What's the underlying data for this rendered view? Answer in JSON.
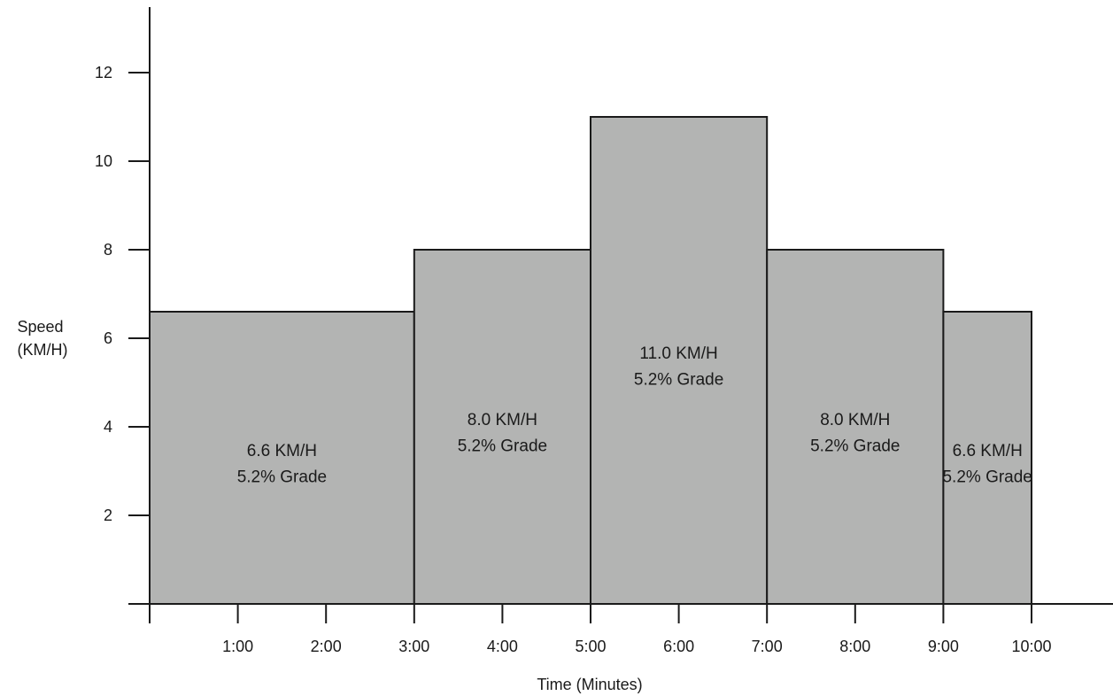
{
  "chart_data": {
    "type": "bar",
    "title": "",
    "xlabel": "Time (Minutes)",
    "ylabel_lines": [
      "Speed",
      "(KM/H)"
    ],
    "xlim": [
      0,
      11
    ],
    "ylim": [
      0,
      13.5
    ],
    "y_ticks": [
      2,
      4,
      6,
      8,
      10,
      12
    ],
    "x_ticks": [
      {
        "value": 0,
        "label": ""
      },
      {
        "value": 1,
        "label": "1:00"
      },
      {
        "value": 2,
        "label": "2:00"
      },
      {
        "value": 3,
        "label": "3:00"
      },
      {
        "value": 4,
        "label": "4:00"
      },
      {
        "value": 5,
        "label": "5:00"
      },
      {
        "value": 6,
        "label": "6:00"
      },
      {
        "value": 7,
        "label": "7:00"
      },
      {
        "value": 8,
        "label": "8:00"
      },
      {
        "value": 9,
        "label": "9:00"
      },
      {
        "value": 10,
        "label": "10:00"
      }
    ],
    "bars": [
      {
        "start": 0,
        "end": 3,
        "value": 6.6,
        "label_lines": [
          "6.6 KM/H",
          "5.2% Grade"
        ]
      },
      {
        "start": 3,
        "end": 5,
        "value": 8.0,
        "label_lines": [
          "8.0 KM/H",
          "5.2% Grade"
        ]
      },
      {
        "start": 5,
        "end": 7,
        "value": 11.0,
        "label_lines": [
          "11.0 KM/H",
          "5.2% Grade"
        ]
      },
      {
        "start": 7,
        "end": 9,
        "value": 8.0,
        "label_lines": [
          "8.0 KM/H",
          "5.2% Grade"
        ]
      },
      {
        "start": 9,
        "end": 10,
        "value": 6.6,
        "label_lines": [
          "6.6 KM/H",
          "5.2% Grade"
        ]
      }
    ],
    "grid": false,
    "legend": "none",
    "colors": {
      "bar_fill": "#b3b4b3",
      "stroke": "#1a1a1a"
    }
  }
}
